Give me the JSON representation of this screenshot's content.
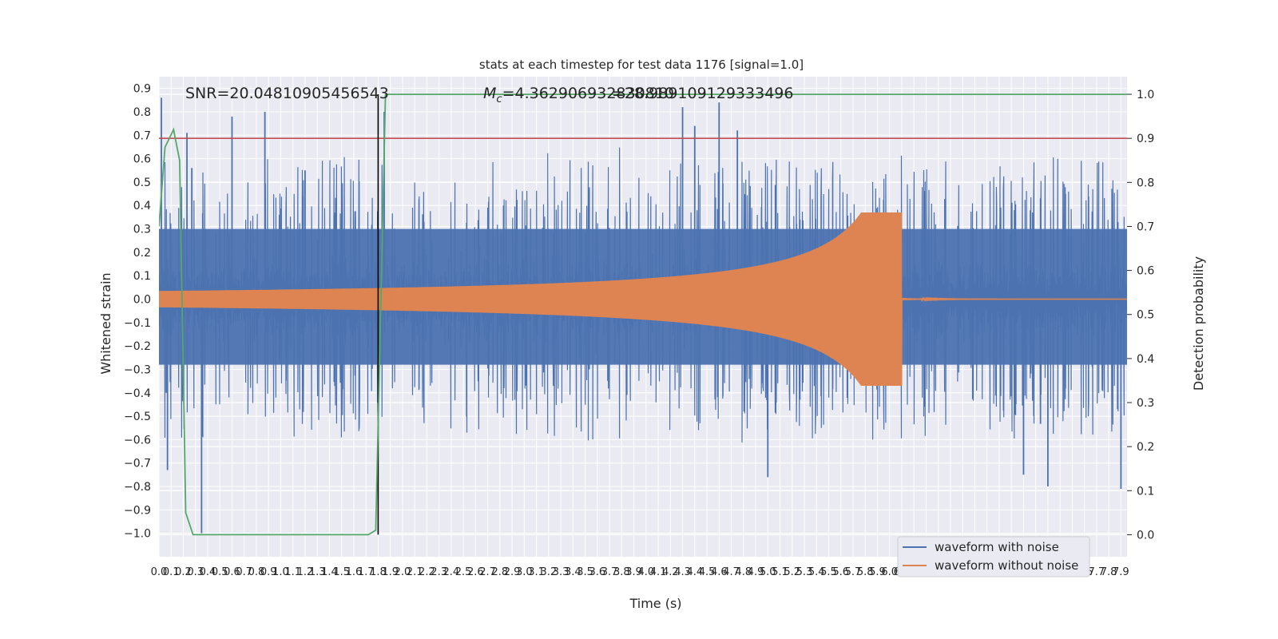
{
  "chart_data": {
    "type": "line",
    "title": "stats at each timestep for test data 1176 [signal=1.0]",
    "xlabel": "Time (s)",
    "ylabel": "Whitened strain",
    "y2label": "Detection probability",
    "xlim": [
      0.0,
      7.95
    ],
    "ylim": [
      -1.1,
      0.95
    ],
    "y2lim": [
      -0.05,
      1.04
    ],
    "x_ticks": [
      "0.0",
      "0.1",
      "0.2",
      "0.3",
      "0.4",
      "0.5",
      "0.6",
      "0.7",
      "0.8",
      "0.9",
      "1.0",
      "1.1",
      "1.2",
      "1.3",
      "1.4",
      "1.5",
      "1.6",
      "1.7",
      "1.8",
      "1.9",
      "2.0",
      "2.1",
      "2.2",
      "2.3",
      "2.4",
      "2.5",
      "2.6",
      "2.7",
      "2.8",
      "2.9",
      "3.0",
      "3.1",
      "3.2",
      "3.3",
      "3.4",
      "3.5",
      "3.6",
      "3.7",
      "3.8",
      "3.9",
      "4.0",
      "4.1",
      "4.2",
      "4.3",
      "4.4",
      "4.5",
      "4.6",
      "4.7",
      "4.8",
      "4.9",
      "5.0",
      "5.1",
      "5.2",
      "5.3",
      "5.4",
      "5.5",
      "5.6",
      "5.7",
      "5.8",
      "5.9",
      "6.0",
      "6.1",
      "6.2",
      "6.3",
      "6.4",
      "6.5",
      "6.6",
      "6.7",
      "6.8",
      "6.9",
      "7.0",
      "7.1",
      "7.2",
      "7.3",
      "7.4",
      "7.5",
      "7.6",
      "7.7",
      "7.8",
      "7.9"
    ],
    "y_ticks": [
      "0.9",
      "0.8",
      "0.7",
      "0.6",
      "0.5",
      "0.4",
      "0.3",
      "0.2",
      "0.1",
      "0.0",
      "−0.1",
      "−0.2",
      "−0.3",
      "−0.4",
      "−0.5",
      "−0.6",
      "−0.7",
      "−0.8",
      "−0.9",
      "−1.0"
    ],
    "y2_ticks": [
      "1.0",
      "0.9",
      "0.8",
      "0.7",
      "0.6",
      "0.5",
      "0.4",
      "0.3",
      "0.2",
      "0.1",
      "0.0"
    ],
    "annotations": {
      "snr": "SNR=20.04810905456543",
      "mc_prefix": "M",
      "mc_sub": "c",
      "mc_value": "=4.362906932830810",
      "overlap_text": "=28.989109129333496"
    },
    "threshold": 0.9,
    "marker_time": 1.8,
    "series": [
      {
        "name": "waveform with noise",
        "color": "#4c72b0",
        "noise_envelope": [
          -0.52,
          0.5
        ],
        "spikes": [
          [
            0.02,
            0.86
          ],
          [
            0.06,
            -0.4
          ],
          [
            0.07,
            -0.73
          ],
          [
            0.23,
            0.71
          ],
          [
            0.27,
            0.56
          ],
          [
            0.35,
            -1.0
          ],
          [
            0.38,
            0.3
          ],
          [
            0.6,
            0.78
          ],
          [
            0.87,
            0.8
          ],
          [
            1.2,
            0.55
          ],
          [
            1.85,
            0.8
          ],
          [
            4.4,
            0.74
          ],
          [
            4.3,
            0.82
          ],
          [
            4.6,
            0.84
          ],
          [
            4.75,
            0.72
          ],
          [
            7.9,
            -0.81
          ],
          [
            5.0,
            -0.76
          ],
          [
            7.1,
            -0.75
          ],
          [
            7.3,
            -0.8
          ]
        ]
      },
      {
        "name": "waveform without noise",
        "color": "#dd8452",
        "chirp": {
          "start_amp": 0.035,
          "peak_amp": 0.37,
          "merger_time": 6.1
        }
      },
      {
        "name": "detection probability",
        "color": "#55a868",
        "axis": "right",
        "x": [
          0.0,
          0.05,
          0.12,
          0.17,
          0.22,
          0.28,
          0.35,
          1.2,
          1.72,
          1.78,
          1.82,
          1.86,
          1.9,
          7.95
        ],
        "values": [
          0.7,
          0.88,
          0.92,
          0.85,
          0.05,
          0.0,
          0.0,
          0.0,
          0.0,
          0.01,
          0.5,
          1.0,
          1.0,
          1.0
        ]
      }
    ],
    "legend": {
      "placement": "lower-right",
      "entries": [
        "waveform with noise",
        "waveform without noise"
      ]
    },
    "grid": true
  }
}
